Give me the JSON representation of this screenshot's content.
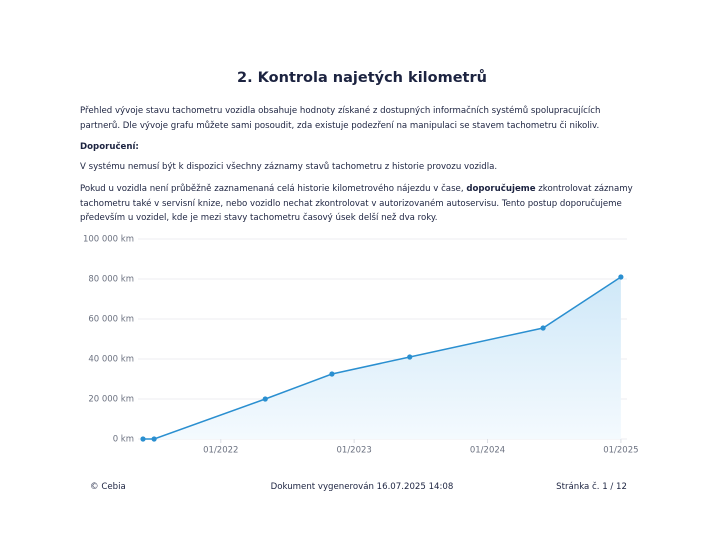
{
  "header": {
    "title": "2. Kontrola najetých kilometrů"
  },
  "body": {
    "intro": "Přehled vývoje stavu tachometru vozidla obsahuje hodnoty získané z dostupných informačních systémů spolupracujících partnerů. Dle vývoje grafu můžete sami posoudit, zda existuje podezření na manipulaci se stavem tachometru či nikoliv.",
    "heading": "Doporučení:",
    "note": "V systému nemusí být k dispozici všechny záznamy stavů tachometru z historie provozu vozidla.",
    "advice": [
      "Pokud u vozidla není průběžně zaznamenaná celá historie kilometrového nájezdu v čase, ",
      "doporučujeme",
      " zkontrolovat záznamy tachometru také v servisní knize, nebo vozidlo nechat zkontrolovat v autorizovaném autoservisu. Tento postup doporučujeme především u vozidel, kde je mezi stavy tachometru časový úsek delší než dva roky."
    ]
  },
  "chart_data": {
    "type": "area",
    "x": [
      "2021-06",
      "2021-07",
      "2022-05",
      "2022-11",
      "2023-06",
      "2024-06",
      "2025-01"
    ],
    "series": [
      {
        "color": "#2a8fd0",
        "values": [
          0,
          0,
          20000,
          32500,
          41000,
          55500,
          81000
        ]
      }
    ],
    "xlim": [
      "2021-06",
      "2025-02"
    ],
    "xticks": [
      {
        "value": "2022-01",
        "label": "01/2022"
      },
      {
        "value": "2023-01",
        "label": "01/2023"
      },
      {
        "value": "2024-01",
        "label": "01/2024"
      },
      {
        "value": "2025-01",
        "label": "01/2025"
      }
    ],
    "ylim": [
      0,
      100000
    ],
    "yticks": [
      {
        "value": 0,
        "label": "0 km"
      },
      {
        "value": 20000,
        "label": "20 000 km"
      },
      {
        "value": 40000,
        "label": "40 000 km"
      },
      {
        "value": 60000,
        "label": "60 000 km"
      },
      {
        "value": 80000,
        "label": "80 000 km"
      },
      {
        "value": 100000,
        "label": "100 000 km"
      }
    ],
    "grid": true
  },
  "footer": {
    "left": "© Cebia",
    "center": "Dokument vygenerován 16.07.2025 14:08",
    "right": "Stránka č. 1 / 12"
  }
}
